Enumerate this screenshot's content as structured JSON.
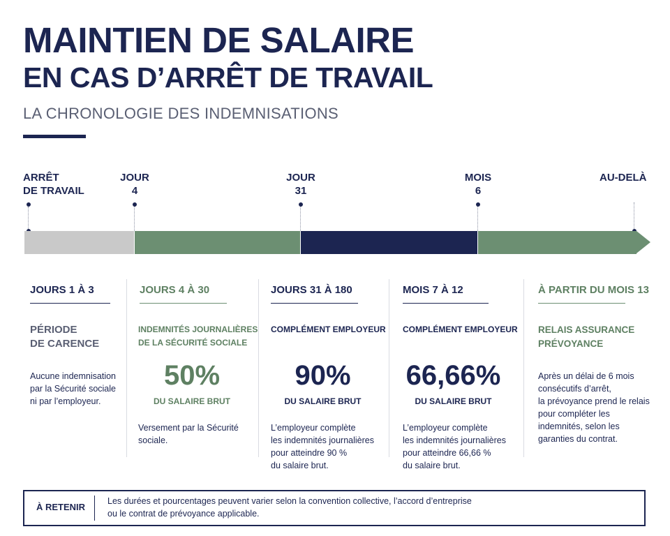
{
  "header": {
    "title_line1": "MAINTIEN DE SALAIRE",
    "title_line2": "EN CAS D’ARRÊT DE TRAVAIL",
    "subtitle": "LA CHRONOLOGIE DES INDEMNISATIONS"
  },
  "timeline": {
    "markers": [
      {
        "line1": "ARRÊT",
        "line2": "DE TRAVAIL"
      },
      {
        "line1": "JOUR",
        "line2": "4"
      },
      {
        "line1": "JOUR",
        "line2": "31"
      },
      {
        "line1": "MOIS",
        "line2": "6"
      },
      {
        "line1": "AU-DELÀ",
        "line2": ""
      }
    ],
    "colors": {
      "carence": "#c9c9c9",
      "secu": "#6c8f72",
      "employeur": "#1c2551",
      "prevoyance": "#6c8f72"
    }
  },
  "columns": [
    {
      "heading": "JOURS 1 À 3",
      "sub_line1": "PÉRIODE",
      "sub_line2": "DE CARENCE",
      "body": [
        "Aucune indemnisation",
        "par la Sécurité sociale",
        "ni par l’employeur."
      ]
    },
    {
      "heading": "JOURS 4 À 30",
      "sub_line1": "INDEMNITÉS JOURNALIÈRES",
      "sub_line2": "DE LA SÉCURITÉ SOCIALE",
      "percent": "50%",
      "percent_label": "DU SALAIRE BRUT",
      "body": [
        "Versement par la Sécurité",
        "sociale."
      ]
    },
    {
      "heading": "JOURS 31 À 180",
      "sub_line1": "COMPLÉMENT EMPLOYEUR",
      "percent": "90%",
      "percent_label": "DU SALAIRE BRUT",
      "body": [
        "L’employeur complète",
        "les indemnités journalières",
        "pour atteindre 90 %",
        "du salaire brut."
      ]
    },
    {
      "heading": "MOIS 7 À 12",
      "sub_line1": "COMPLÉMENT EMPLOYEUR",
      "percent": "66,66%",
      "percent_label": "DU SALAIRE BRUT",
      "body": [
        "L’employeur complète",
        "les indemnités journalières",
        "pour atteindre 66,66 %",
        "du salaire brut."
      ]
    },
    {
      "heading": "À PARTIR DU MOIS 13",
      "sub_line1": "RELAIS ASSURANCE",
      "sub_line2": "PRÉVOYANCE",
      "body": [
        "Après un délai de 6 mois",
        "consécutifs d’arrêt,",
        "la prévoyance prend le relais",
        "pour compléter les",
        "indemnités, selon les",
        "garanties du contrat."
      ]
    }
  ],
  "footer": {
    "label": "À RETENIR",
    "text_line1": "Les durées et pourcentages peuvent varier selon la convention collective, l’accord d’entreprise",
    "text_line2": "ou le contrat de prévoyance applicable."
  }
}
